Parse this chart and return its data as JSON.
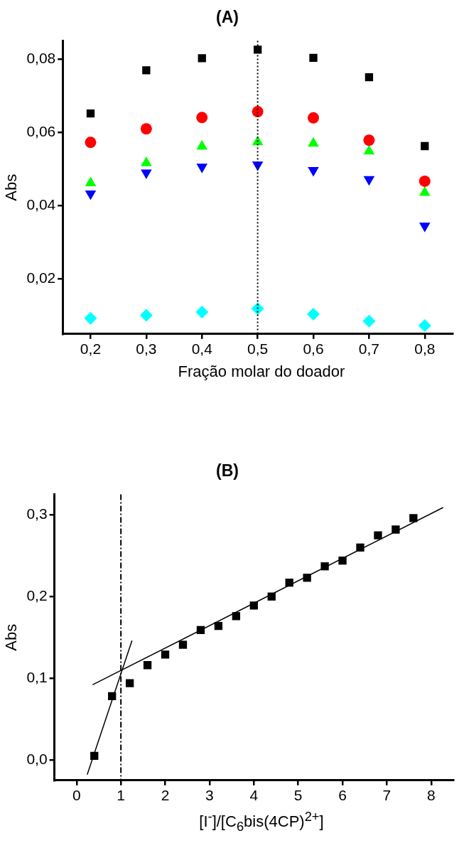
{
  "chart_data": [
    {
      "type": "scatter",
      "title": "(A)",
      "xlabel": "Fração molar do doador",
      "ylabel": "Abs",
      "x": [
        0.2,
        0.3,
        0.4,
        0.5,
        0.6,
        0.7,
        0.8
      ],
      "series": [
        {
          "color": "#000000",
          "marker": "square",
          "values": [
            0.0652,
            0.077,
            0.0803,
            0.0826,
            0.0804,
            0.0751,
            0.0563
          ]
        },
        {
          "color": "#ff0000",
          "marker": "circle",
          "values": [
            0.0573,
            0.061,
            0.0641,
            0.0657,
            0.064,
            0.0579,
            0.0467
          ]
        },
        {
          "color": "#00ff00",
          "marker": "triangle",
          "values": [
            0.0462,
            0.0517,
            0.0562,
            0.0574,
            0.057,
            0.0549,
            0.0436
          ]
        },
        {
          "color": "#0000ff",
          "marker": "triangle-down",
          "values": [
            0.0433,
            0.049,
            0.0506,
            0.0512,
            0.0497,
            0.0472,
            0.0345
          ]
        },
        {
          "color": "#00ffff",
          "marker": "diamond",
          "values": [
            0.0093,
            0.0101,
            0.011,
            0.0119,
            0.0104,
            0.0085,
            0.0073
          ]
        }
      ],
      "xlim": [
        0.15,
        0.85
      ],
      "ylim": [
        0.005,
        0.085
      ],
      "xticks": [
        {
          "value": 0.2,
          "label": "0,2"
        },
        {
          "value": 0.3,
          "label": "0,3"
        },
        {
          "value": 0.4,
          "label": "0,4"
        },
        {
          "value": 0.5,
          "label": "0,5"
        },
        {
          "value": 0.6,
          "label": "0,6"
        },
        {
          "value": 0.7,
          "label": "0,7"
        },
        {
          "value": 0.8,
          "label": "0,8"
        }
      ],
      "yticks": [
        {
          "value": 0.02,
          "label": "0,02"
        },
        {
          "value": 0.04,
          "label": "0,04"
        },
        {
          "value": 0.06,
          "label": "0,06"
        },
        {
          "value": 0.08,
          "label": "0,08"
        }
      ],
      "ref_lines": [
        {
          "axis": "x",
          "value": 0.5,
          "color": "#000000",
          "line_style": "dotted"
        }
      ]
    },
    {
      "type": "scatter",
      "title": "(B)",
      "xlabel": "[I$^{-}$]/[C$_{6}$bis(4CP)$^{2+}$]",
      "ylabel": "Abs",
      "series": [
        {
          "color": "#000000",
          "marker": "square",
          "x": [
            0.4,
            0.8,
            1.2,
            1.6,
            2.0,
            2.4,
            2.8,
            3.2,
            3.6,
            4.0,
            4.4,
            4.8,
            5.2,
            5.6,
            6.0,
            6.4,
            6.8,
            7.2,
            7.6
          ],
          "values": [
            0.005,
            0.078,
            0.094,
            0.116,
            0.129,
            0.141,
            0.159,
            0.164,
            0.176,
            0.189,
            0.2,
            0.217,
            0.223,
            0.237,
            0.244,
            0.26,
            0.275,
            0.282,
            0.296
          ]
        },
        {
          "type": "line",
          "color": "#000000",
          "marker": "none",
          "x": [
            0.24,
            1.25
          ],
          "values": [
            -0.018,
            0.146
          ]
        },
        {
          "type": "line",
          "color": "#000000",
          "marker": "none",
          "x": [
            0.36,
            8.27
          ],
          "values": [
            0.092,
            0.309
          ]
        }
      ],
      "xlim": [
        -0.5,
        8.5
      ],
      "ylim": [
        -0.025,
        0.325
      ],
      "xticks": [
        0,
        1,
        2,
        3,
        4,
        5,
        6,
        7,
        8
      ],
      "yticks": [
        {
          "value": 0.0,
          "label": "0,0"
        },
        {
          "value": 0.1,
          "label": "0,1"
        },
        {
          "value": 0.2,
          "label": "0,2"
        },
        {
          "value": 0.3,
          "label": "0,3"
        }
      ],
      "ref_lines": [
        {
          "axis": "x",
          "value": 1,
          "color": "#000000",
          "line_style": "dashed"
        }
      ]
    }
  ]
}
